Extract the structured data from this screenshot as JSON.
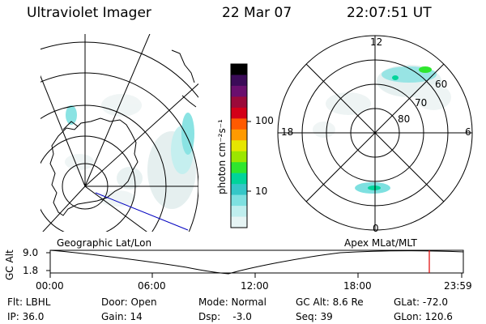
{
  "header": {
    "title": "Ultraviolet Imager",
    "date": "22 Mar 07",
    "time": "22:07:51 UT"
  },
  "colorbar": {
    "label": "photon cm⁻²s⁻¹",
    "ticks": [
      "100",
      "10"
    ],
    "colors": [
      "#000000",
      "#3b0b58",
      "#6a0f6e",
      "#9b0a3a",
      "#d30018",
      "#ff5a00",
      "#ff9a00",
      "#e6e600",
      "#9be600",
      "#2ee62e",
      "#00d49a",
      "#35c7c7",
      "#7ee0e0",
      "#bfeeee",
      "#e6f4f4"
    ]
  },
  "polar_plot": {
    "top_label": "12",
    "bottom_label": "0",
    "left_label": "18",
    "right_label": "6",
    "ring_labels": [
      "60",
      "70",
      "80"
    ]
  },
  "panel_labels": {
    "left": "Geographic Lat/Lon",
    "right": "Apex MLat/MLT"
  },
  "altitude_strip": {
    "ylabel": "GC Alt",
    "yticks": [
      "9.0",
      "1.8"
    ],
    "xticks": [
      "00:00",
      "06:00",
      "12:00",
      "18:00",
      "23:59"
    ],
    "marker_color": "#e00000"
  },
  "footer": {
    "flt": "Flt: LBHL",
    "ip": "IP: 36.0",
    "door": "Door: Open",
    "gain": "Gain: 14",
    "mode": "Mode: Normal",
    "dsp": "Dsp:    -3.0",
    "gcalt": "GC Alt: 8.6 Re",
    "seq": "Seq: 39",
    "glat": "GLat: -72.0",
    "glon": "GLon: 120.6"
  }
}
